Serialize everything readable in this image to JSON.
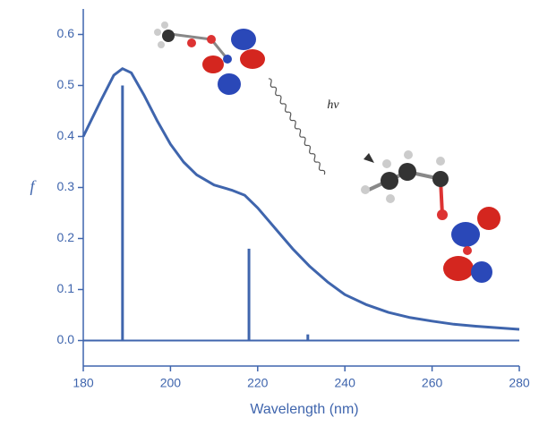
{
  "chart_data": {
    "type": "line",
    "xlabel": "Wavelength (nm)",
    "ylabel": "f",
    "annotation": "hv",
    "xlim": [
      180,
      280
    ],
    "ylim": [
      -0.05,
      0.65
    ],
    "xticks": [
      180,
      200,
      220,
      240,
      260,
      280
    ],
    "yticks": [
      {
        "value": 0,
        "label": "0.0"
      },
      0.1,
      0.2,
      0.3,
      0.4,
      0.5,
      0.6
    ],
    "series": [
      {
        "type": "line",
        "color": "#3f65ad",
        "x": [
          180,
          184,
          187,
          189,
          191,
          194,
          197,
          200,
          203,
          206,
          210,
          214,
          217,
          220,
          224,
          228,
          232,
          236,
          240,
          245,
          250,
          255,
          260,
          265,
          270,
          275,
          280
        ],
        "values": [
          0.4,
          0.47,
          0.52,
          0.533,
          0.525,
          0.48,
          0.43,
          0.385,
          0.35,
          0.325,
          0.305,
          0.295,
          0.285,
          0.26,
          0.22,
          0.18,
          0.145,
          0.115,
          0.09,
          0.07,
          0.055,
          0.045,
          0.038,
          0.032,
          0.028,
          0.025,
          0.022
        ]
      },
      {
        "type": "bar",
        "color": "#3f65ad",
        "x": [
          189,
          218,
          231.5
        ],
        "values": [
          0.5,
          0.18,
          0.012
        ]
      }
    ]
  }
}
